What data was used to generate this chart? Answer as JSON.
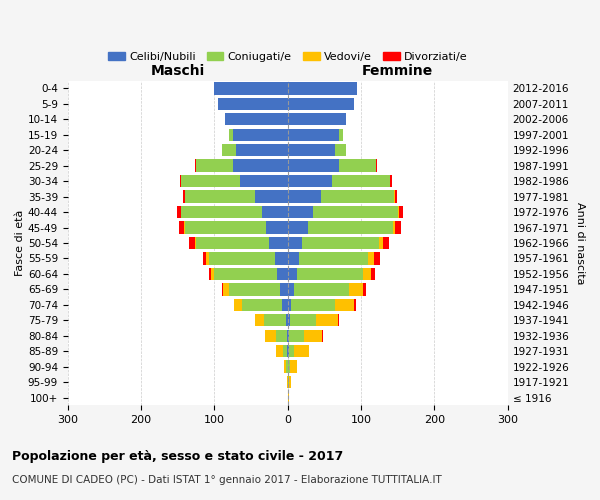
{
  "age_groups": [
    "100+",
    "95-99",
    "90-94",
    "85-89",
    "80-84",
    "75-79",
    "70-74",
    "65-69",
    "60-64",
    "55-59",
    "50-54",
    "45-49",
    "40-44",
    "35-39",
    "30-34",
    "25-29",
    "20-24",
    "15-19",
    "10-14",
    "5-9",
    "0-4"
  ],
  "birth_years": [
    "≤ 1916",
    "1917-1921",
    "1922-1926",
    "1927-1931",
    "1932-1936",
    "1937-1941",
    "1942-1946",
    "1947-1951",
    "1952-1956",
    "1957-1961",
    "1962-1966",
    "1967-1971",
    "1972-1976",
    "1977-1981",
    "1982-1986",
    "1987-1991",
    "1992-1996",
    "1997-2001",
    "2002-2006",
    "2007-2011",
    "2012-2016"
  ],
  "colors": {
    "celibi": "#4472C4",
    "coniugati": "#92D050",
    "vedovi": "#FFC000",
    "divorziati": "#FF0000"
  },
  "maschi": {
    "celibi": [
      0,
      0,
      0,
      1,
      1,
      3,
      8,
      10,
      15,
      18,
      25,
      30,
      35,
      45,
      65,
      75,
      70,
      75,
      85,
      95,
      100
    ],
    "coniugati": [
      0,
      0,
      2,
      5,
      15,
      30,
      55,
      70,
      85,
      90,
      100,
      110,
      110,
      95,
      80,
      50,
      20,
      5,
      0,
      0,
      0
    ],
    "vedovi": [
      0,
      1,
      3,
      10,
      15,
      12,
      10,
      8,
      5,
      3,
      2,
      1,
      1,
      0,
      0,
      0,
      0,
      0,
      0,
      0,
      0
    ],
    "divorziati": [
      0,
      0,
      0,
      0,
      0,
      0,
      1,
      2,
      3,
      5,
      8,
      8,
      5,
      3,
      2,
      1,
      0,
      0,
      0,
      0,
      0
    ]
  },
  "femmine": {
    "nubili": [
      0,
      0,
      0,
      1,
      2,
      3,
      5,
      8,
      12,
      15,
      20,
      28,
      35,
      45,
      60,
      70,
      65,
      70,
      80,
      90,
      95
    ],
    "coniugate": [
      0,
      1,
      3,
      8,
      20,
      35,
      60,
      75,
      90,
      95,
      105,
      115,
      115,
      100,
      80,
      50,
      15,
      5,
      0,
      0,
      0
    ],
    "vedove": [
      1,
      3,
      10,
      20,
      25,
      30,
      25,
      20,
      12,
      8,
      5,
      3,
      2,
      1,
      0,
      0,
      0,
      0,
      0,
      0,
      0
    ],
    "divorziate": [
      0,
      0,
      0,
      0,
      1,
      2,
      3,
      4,
      5,
      8,
      8,
      8,
      5,
      3,
      2,
      1,
      0,
      0,
      0,
      0,
      0
    ]
  },
  "xlim": 300,
  "title": "Popolazione per età, sesso e stato civile - 2017",
  "subtitle": "COMUNE DI CADEO (PC) - Dati ISTAT 1° gennaio 2017 - Elaborazione TUTTITALIA.IT",
  "ylabel_left": "Maschi",
  "ylabel_right": "Femmine",
  "xlabel_age": "Fasce di età",
  "xlabel_birth": "Anni di nascita",
  "legend_labels": [
    "Celibi/Nubili",
    "Coniugati/e",
    "Vedovi/e",
    "Divorziati/e"
  ],
  "bg_color": "#f5f5f5",
  "plot_bg_color": "#ffffff"
}
